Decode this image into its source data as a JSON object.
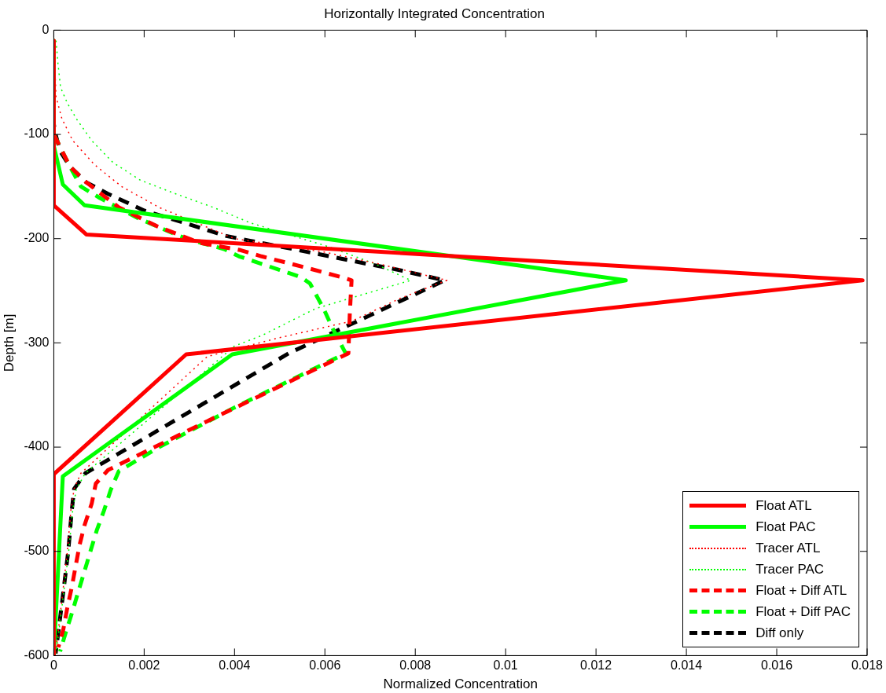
{
  "chart_data": {
    "type": "line",
    "title": "Horizontally Integrated Concentration",
    "xlabel": "Normalized Concentration",
    "ylabel": "Depth [m]",
    "xlim": [
      0,
      0.018
    ],
    "xticks": [
      0,
      0.002,
      0.004,
      0.006,
      0.008,
      0.01,
      0.012,
      0.014,
      0.016,
      0.018
    ],
    "ylim": [
      -600,
      0
    ],
    "yticks": [
      -600,
      -500,
      -400,
      -300,
      -200,
      -100,
      0
    ],
    "grid": false,
    "legend": "bottom right",
    "marker": "none",
    "series": [
      {
        "name": "Float ATL",
        "color": "#ff0000",
        "line_style": "solid",
        "x": [
          0,
          0,
          0.00072,
          0.0179,
          0.00293,
          0,
          0
        ],
        "values": [
          -10,
          -168,
          -196,
          -240,
          -311,
          -426,
          -600
        ]
      },
      {
        "name": "Float PAC",
        "color": "#00ff00",
        "line_style": "solid",
        "x": [
          0,
          0,
          0.0002,
          0.00068,
          0.01266,
          0.00395,
          0.0002,
          0
        ],
        "values": [
          -10,
          -111,
          -148,
          -168,
          -240,
          -311,
          -428,
          -600
        ]
      },
      {
        "name": "Tracer ATL",
        "color": "#ff0000",
        "line_style": "dotted",
        "x": [
          0,
          5e-05,
          0.00018,
          0.00042,
          0.0009,
          0.0015,
          0.00233,
          0.00317,
          0.004,
          0.006,
          0.00717,
          0.0087,
          0.00768,
          0.0066,
          0.0049,
          0.0034,
          0.0006,
          0.00045,
          0.00038,
          0.0003,
          0.00017,
          4e-05
        ],
        "values": [
          -10,
          -64,
          -85,
          -106,
          -129,
          -150,
          -170,
          -185,
          -200,
          -213,
          -224,
          -240,
          -257,
          -279,
          -296,
          -313,
          -425,
          -440,
          -460,
          -500,
          -550,
          -598
        ]
      },
      {
        "name": "Tracer PAC",
        "color": "#00ff00",
        "line_style": "dotted",
        "x": [
          5e-05,
          9e-05,
          0.00015,
          0.0003,
          0.0005,
          0.00084,
          0.00131,
          0.00192,
          0.0027,
          0.00353,
          0.00436,
          0.0061,
          0.0071,
          0.0079,
          0.0058,
          0.0046,
          0.004,
          0.0007,
          0.0005,
          0.00042,
          0.00033,
          0.00019,
          5e-05
        ],
        "values": [
          -10,
          -31,
          -55,
          -70,
          -85,
          -106,
          -127,
          -144,
          -157,
          -170,
          -185,
          -208,
          -224,
          -240,
          -267,
          -293,
          -303,
          -425,
          -440,
          -460,
          -500,
          -550,
          -598
        ]
      },
      {
        "name": "Float + Diff ATL",
        "color": "#ff0000",
        "line_style": "dashed",
        "x": [
          0,
          0,
          0.00036,
          0.00072,
          0.00144,
          0.00228,
          0.00323,
          0.00413,
          0.0046,
          0.00551,
          0.00646,
          0.00659,
          0.00655,
          0.00652,
          0.0034,
          0.0012,
          0.00093,
          0.00084,
          0.00068,
          0.00057,
          0.00048,
          0.0004,
          0.0003,
          0.00021,
          0.0001
        ],
        "values": [
          -10,
          -100,
          -131,
          -146,
          -170,
          -188,
          -204,
          -211,
          -217,
          -227,
          -238,
          -240,
          -273,
          -310,
          -375,
          -422,
          -435,
          -454,
          -475,
          -494,
          -515,
          -534,
          -554,
          -575,
          -592
        ]
      },
      {
        "name": "Float + Diff PAC",
        "color": "#00ff00",
        "line_style": "dashed",
        "x": [
          0,
          0,
          0.00036,
          0.0006,
          0.00102,
          0.00185,
          0.00275,
          0.00317,
          0.00377,
          0.0041,
          0.005,
          0.00547,
          0.00567,
          0.00598,
          0.00617,
          0.00646,
          0.004,
          0.00233,
          0.00144,
          0.00126,
          0.00111,
          0.00095,
          0.00081,
          0.00068,
          0.00054,
          0.00041,
          0.00027,
          0.00014
        ],
        "values": [
          -10,
          -100,
          -131,
          -150,
          -161,
          -180,
          -197,
          -203,
          -210,
          -217,
          -230,
          -237,
          -243,
          -268,
          -286,
          -310,
          -362,
          -400,
          -423,
          -441,
          -461,
          -480,
          -500,
          -519,
          -539,
          -558,
          -577,
          -596
        ]
      },
      {
        "name": "Diff only",
        "color": "#000000",
        "line_style": "dashed",
        "x": [
          0,
          0,
          4e-05,
          0.00014,
          0.00036,
          0.00072,
          0.0012,
          0.002,
          0.0029,
          0.00377,
          0.00434,
          0.0053,
          0.00668,
          0.00763,
          0.00865,
          0.0052,
          0.0007,
          0.00045,
          0.0004,
          0.00032,
          0.00018,
          4e-05
        ],
        "values": [
          -10,
          -90,
          -100,
          -116,
          -131,
          -146,
          -157,
          -173,
          -185,
          -197,
          -202,
          -210,
          -222,
          -230,
          -240,
          -310,
          -425,
          -440,
          -460,
          -500,
          -550,
          -598
        ]
      }
    ]
  }
}
